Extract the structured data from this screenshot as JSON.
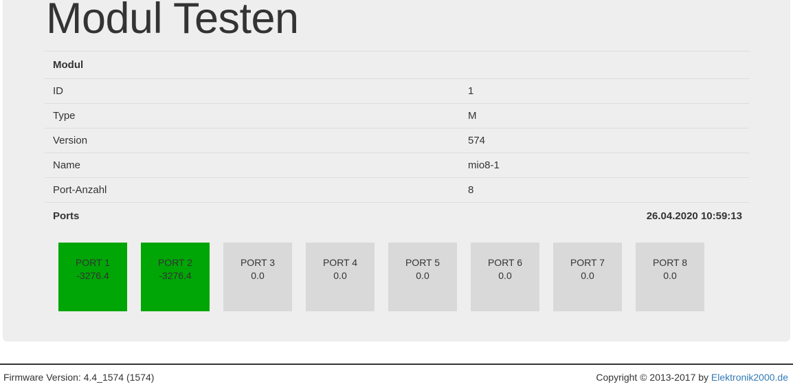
{
  "page": {
    "title": "Modul Testen"
  },
  "modul_table": {
    "header": "Modul",
    "rows": [
      {
        "label": "ID",
        "value": "1"
      },
      {
        "label": "Type",
        "value": "M"
      },
      {
        "label": "Version",
        "value": "574"
      },
      {
        "label": "Name",
        "value": "mio8-1"
      },
      {
        "label": "Port-Anzahl",
        "value": "8"
      }
    ]
  },
  "ports_section": {
    "header": "Ports",
    "timestamp": "26.04.2020 10:59:13",
    "ports": [
      {
        "name": "PORT 1",
        "value": "-3276.4",
        "state": "active"
      },
      {
        "name": "PORT 2",
        "value": "-3276.4",
        "state": "active"
      },
      {
        "name": "PORT 3",
        "value": "0.0",
        "state": "inactive"
      },
      {
        "name": "PORT 4",
        "value": "0.0",
        "state": "inactive"
      },
      {
        "name": "PORT 5",
        "value": "0.0",
        "state": "inactive"
      },
      {
        "name": "PORT 6",
        "value": "0.0",
        "state": "inactive"
      },
      {
        "name": "PORT 7",
        "value": "0.0",
        "state": "inactive"
      },
      {
        "name": "PORT 8",
        "value": "0.0",
        "state": "inactive"
      }
    ]
  },
  "footer": {
    "firmware": "Firmware Version: 4.4_1574 (1574)",
    "copyright_prefix": "Copyright © 2013-2017 by ",
    "link_text": "Elektronik2000.de"
  },
  "colors": {
    "active_port": "#00a506",
    "inactive_port": "#d9d9d9",
    "link": "#337ab7",
    "panel_bg": "#eeeeee",
    "divider": "#dddddd",
    "footer_rule": "#333333",
    "text": "#333333"
  }
}
